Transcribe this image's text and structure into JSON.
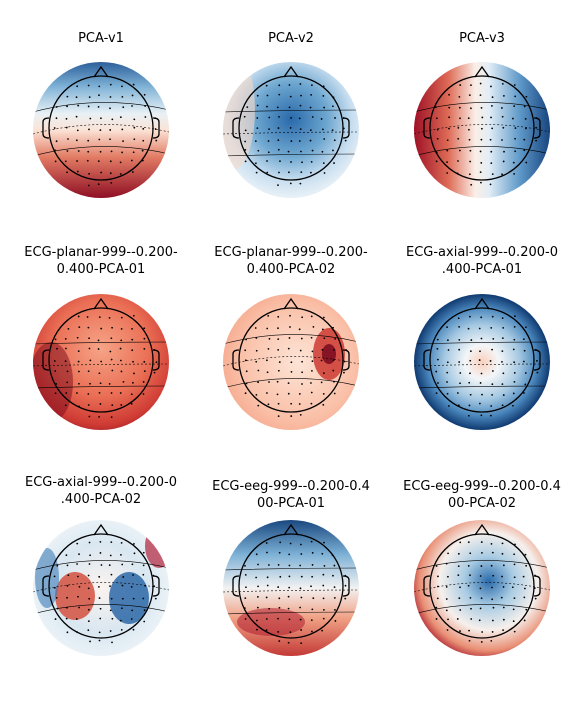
{
  "figure": {
    "panels": [
      {
        "title_lines": [
          "PCA-v1"
        ],
        "pattern": "front-back",
        "colors": [
          "#b2182b",
          "#2166ac"
        ]
      },
      {
        "title_lines": [
          "PCA-v2"
        ],
        "pattern": "central-blue",
        "colors": [
          "#2166ac"
        ]
      },
      {
        "title_lines": [
          "PCA-v3"
        ],
        "pattern": "left-right",
        "colors": [
          "#b2182b",
          "#2166ac"
        ]
      },
      {
        "title_lines": [
          "ECG-planar-999--0.200-",
          "0.400-PCA-01"
        ],
        "pattern": "all-red",
        "colors": [
          "#d6604d"
        ]
      },
      {
        "title_lines": [
          "ECG-planar-999--0.200-",
          "0.400-PCA-02"
        ],
        "pattern": "right-red-spot",
        "colors": [
          "#b2182b"
        ]
      },
      {
        "title_lines": [
          "ECG-axial-999--0.200-0",
          ".400-PCA-01"
        ],
        "pattern": "ring-blue",
        "colors": [
          "#2166ac",
          "#f4a582"
        ]
      },
      {
        "title_lines": [
          "ECG-axial-999--0.200-0",
          ".400-PCA-02"
        ],
        "pattern": "dipole",
        "colors": [
          "#d6604d",
          "#2166ac"
        ]
      },
      {
        "title_lines": [
          "ECG-eeg-999--0.200-0.4",
          "00-PCA-01"
        ],
        "pattern": "front-blue-back-red",
        "colors": [
          "#2166ac",
          "#b2182b"
        ]
      },
      {
        "title_lines": [
          "ECG-eeg-999--0.200-0.4",
          "00-PCA-02"
        ],
        "pattern": "center-blue-ring-red",
        "colors": [
          "#2166ac",
          "#b2182b"
        ]
      }
    ]
  }
}
